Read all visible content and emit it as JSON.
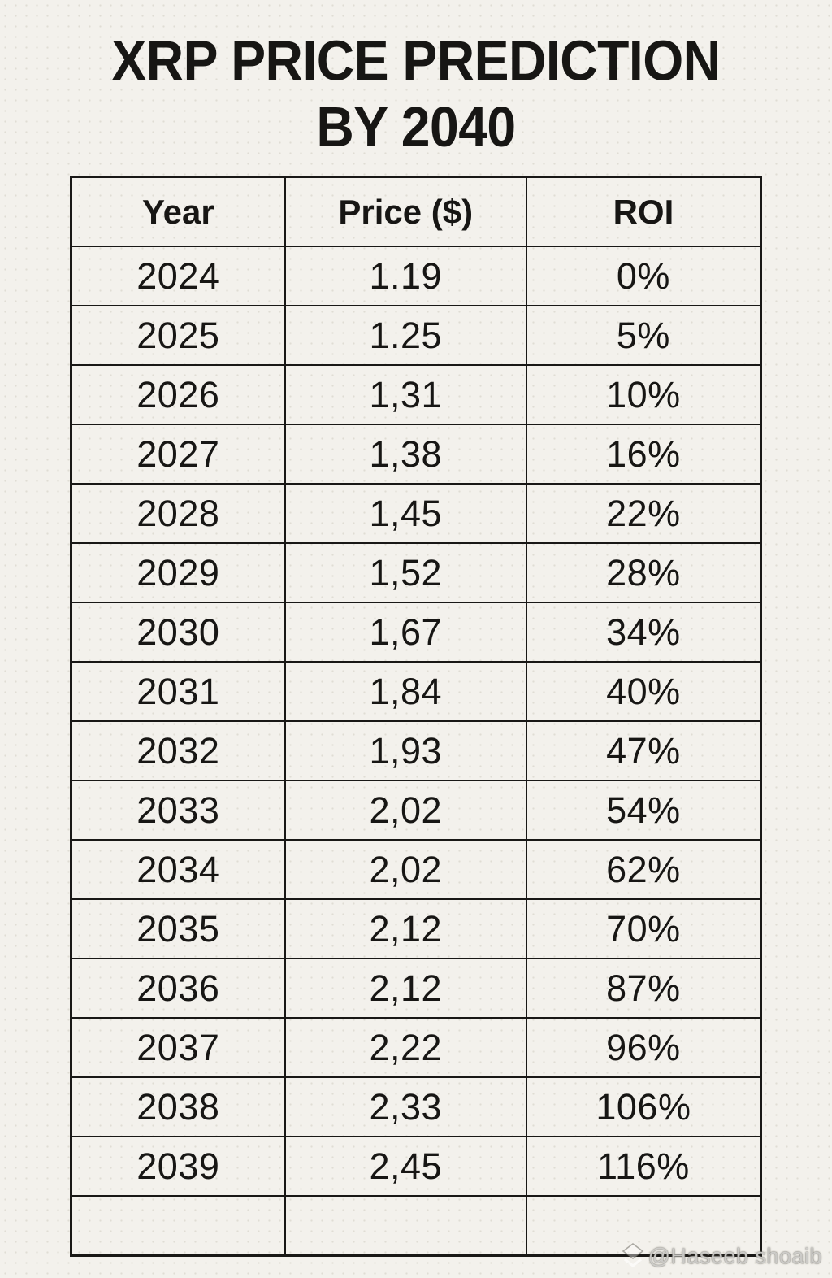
{
  "chart_data": {
    "type": "table",
    "title": "XRP PRICE PREDICTION BY 2040",
    "title_lines": [
      "XRP PRICE PREDICTION",
      "BY 2040"
    ],
    "columns": [
      "Year",
      "Price ($)",
      "ROI"
    ],
    "rows": [
      [
        "2024",
        "1.19",
        "0%"
      ],
      [
        "2025",
        "1.25",
        "5%"
      ],
      [
        "2026",
        "1,31",
        "10%"
      ],
      [
        "2027",
        "1,38",
        "16%"
      ],
      [
        "2028",
        "1,45",
        "22%"
      ],
      [
        "2029",
        "1,52",
        "28%"
      ],
      [
        "2030",
        "1,67",
        "34%"
      ],
      [
        "2031",
        "1,84",
        "40%"
      ],
      [
        "2032",
        "1,93",
        "47%"
      ],
      [
        "2033",
        "2,02",
        "54%"
      ],
      [
        "2034",
        "2,02",
        "62%"
      ],
      [
        "2035",
        "2,12",
        "70%"
      ],
      [
        "2036",
        "2,12",
        "87%"
      ],
      [
        "2037",
        "2,22",
        "96%"
      ],
      [
        "2038",
        "2,33",
        "106%"
      ],
      [
        "2039",
        "2,45",
        "116%"
      ]
    ],
    "layout_hints": {
      "grid": "full table grid, dark borders",
      "header_bold": true,
      "partial_row_clipped_at_bottom": true
    }
  },
  "watermark": {
    "text": "@Haseeb shoaib",
    "icon": "diamond-chevron-icon"
  },
  "colors": {
    "background": "#f3f1ec",
    "text": "#171614",
    "border": "#191816",
    "watermark_text": "rgba(255,255,255,0.62)"
  }
}
